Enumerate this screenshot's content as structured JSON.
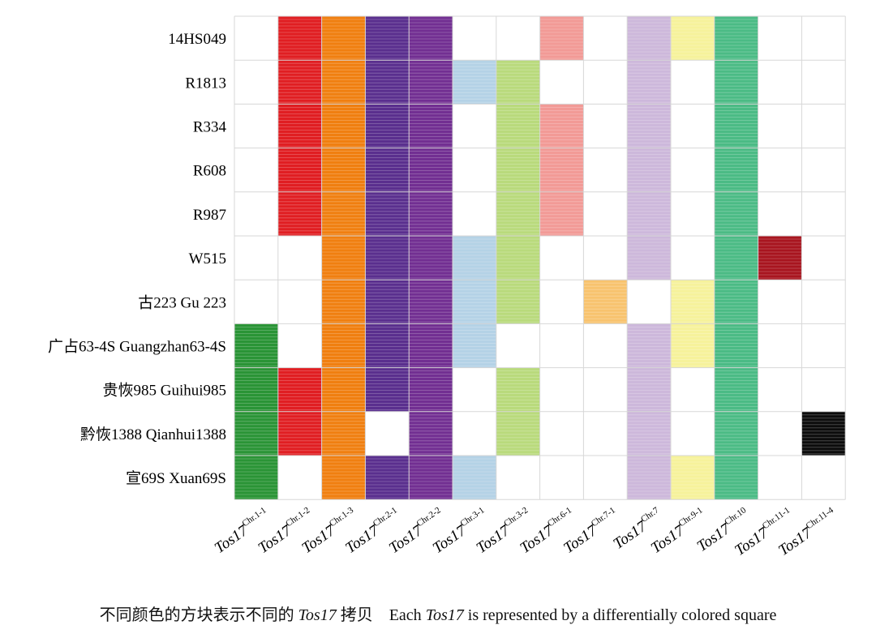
{
  "chart_data": {
    "type": "heatmap",
    "rows": [
      "14HS049",
      "R1813",
      "R334",
      "R608",
      "R987",
      "W515",
      "古223 Gu 223",
      "广占63-4S Guangzhan63-4S",
      "贵恢985 Guihui985",
      "黔恢1388 Qianhui1388",
      "宣69S Xuan69S"
    ],
    "columns": [
      {
        "base": "Tos17",
        "sup": "Chr.1-1"
      },
      {
        "base": "Tos17",
        "sup": "Chr.1-2"
      },
      {
        "base": "Tos17",
        "sup": "Chr.1-3"
      },
      {
        "base": "Tos17",
        "sup": "Chr.2-1"
      },
      {
        "base": "Tos17",
        "sup": "Chr.2-2"
      },
      {
        "base": "Tos17",
        "sup": "Chr.3-1"
      },
      {
        "base": "Tos17",
        "sup": "Chr.3-2"
      },
      {
        "base": "Tos17",
        "sup": "Chr.6-1"
      },
      {
        "base": "Tos17",
        "sup": "Chr.7-1"
      },
      {
        "base": "Tos17",
        "sup": "Chr.7"
      },
      {
        "base": "Tos17",
        "sup": "Chr.9-1"
      },
      {
        "base": "Tos17",
        "sup": "Chr.10"
      },
      {
        "base": "Tos17",
        "sup": "Chr.11-1"
      },
      {
        "base": "Tos17",
        "sup": "Chr.11-4"
      }
    ],
    "column_colors": [
      "#2a9436",
      "#e01e22",
      "#f07f10",
      "#5a2f8e",
      "#722f92",
      "#b4d2e6",
      "#b9da7c",
      "#f29a96",
      "#f8c36e",
      "#cdb8db",
      "#f6f29b",
      "#4bbb85",
      "#a8151f",
      "#0c0c0c"
    ],
    "matrix": [
      [
        0,
        1,
        1,
        1,
        1,
        0,
        0,
        1,
        0,
        1,
        1,
        1,
        0,
        0
      ],
      [
        0,
        1,
        1,
        1,
        1,
        1,
        1,
        0,
        0,
        1,
        0,
        1,
        0,
        0
      ],
      [
        0,
        1,
        1,
        1,
        1,
        0,
        1,
        1,
        0,
        1,
        0,
        1,
        0,
        0
      ],
      [
        0,
        1,
        1,
        1,
        1,
        0,
        1,
        1,
        0,
        1,
        0,
        1,
        0,
        0
      ],
      [
        0,
        1,
        1,
        1,
        1,
        0,
        1,
        1,
        0,
        1,
        0,
        1,
        0,
        0
      ],
      [
        0,
        0,
        1,
        1,
        1,
        1,
        1,
        0,
        0,
        1,
        0,
        1,
        1,
        0
      ],
      [
        0,
        0,
        1,
        1,
        1,
        1,
        1,
        0,
        1,
        0,
        1,
        1,
        0,
        0
      ],
      [
        1,
        0,
        1,
        1,
        1,
        1,
        0,
        0,
        0,
        1,
        1,
        1,
        0,
        0
      ],
      [
        1,
        1,
        1,
        1,
        1,
        0,
        1,
        0,
        0,
        1,
        0,
        1,
        0,
        0
      ],
      [
        1,
        1,
        1,
        0,
        1,
        0,
        1,
        0,
        0,
        1,
        0,
        1,
        0,
        1
      ],
      [
        1,
        0,
        1,
        1,
        1,
        1,
        0,
        0,
        0,
        1,
        1,
        1,
        0,
        0
      ]
    ],
    "grid": true
  },
  "caption": {
    "cn_prefix": "不同颜色的方块表示不同的",
    "italic_term": "Tos17",
    "cn_suffix": "拷贝",
    "en_prefix": "Each",
    "en_italic": "Tos17",
    "en_suffix": "is represented by a differentially colored square"
  }
}
